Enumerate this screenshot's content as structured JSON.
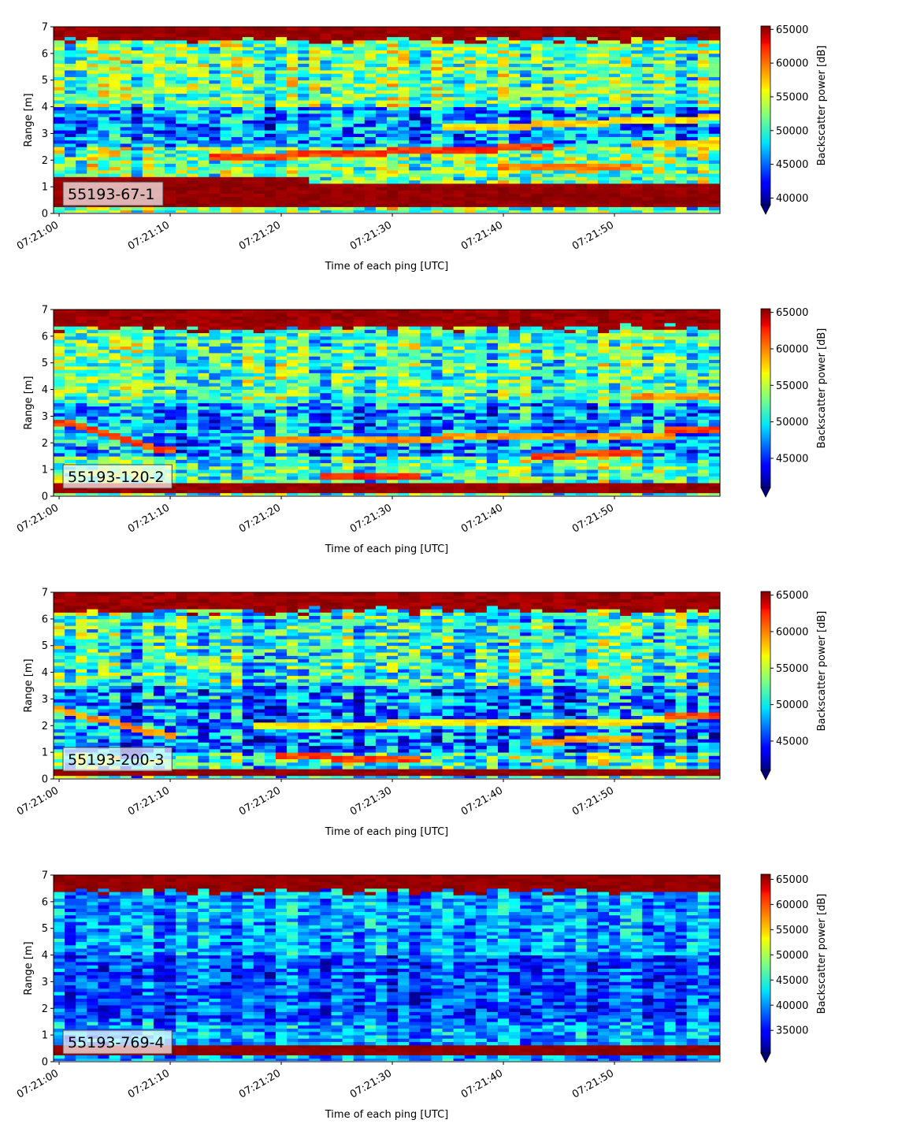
{
  "chart_data": [
    {
      "type": "heatmap",
      "panel_label": "55193-67-1",
      "xlabel": "Time of each ping [UTC]",
      "ylabel": "Range [m]",
      "x_tick_labels": [
        "07:21:00",
        "07:21:10",
        "07:21:20",
        "07:21:30",
        "07:21:40",
        "07:21:50"
      ],
      "x_tick_seconds": [
        0,
        10,
        20,
        30,
        40,
        50
      ],
      "xlim_seconds": [
        -0.5,
        59.5
      ],
      "ylim": [
        0,
        7
      ],
      "y_ticks": [
        0,
        1,
        2,
        3,
        4,
        5,
        6,
        7
      ],
      "colorbar_label": "Backscatter power [dB]",
      "colorbar_range": [
        39000,
        65500
      ],
      "colorbar_ticks": [
        40000,
        45000,
        50000,
        55000,
        60000,
        65000
      ],
      "colorbar_tick_labels": [
        "40000",
        "45000",
        "50000",
        "55000",
        "60000",
        "65000"
      ],
      "colorbar_extend": "min",
      "colormap": "jet",
      "pings": 60,
      "features": [
        {
          "feature": "surface_band",
          "y_range_m": [
            6.5,
            7.0
          ],
          "value": 65500
        },
        {
          "feature": "near_field_band",
          "t_range_s": [
            0,
            23
          ],
          "y_range_m": [
            0.2,
            1.4
          ],
          "value": 65500
        },
        {
          "feature": "near_field_band",
          "t_range_s": [
            23,
            60
          ],
          "y_range_m": [
            0.2,
            1.1
          ],
          "value": 65500
        },
        {
          "feature": "layer",
          "t_range_s": [
            14,
            44
          ],
          "y_start_m": 2.1,
          "y_end_m": 2.5,
          "value": 62000
        },
        {
          "feature": "layer",
          "t_range_s": [
            40,
            52
          ],
          "y_start_m": 1.7,
          "y_end_m": 1.8,
          "value": 60000
        },
        {
          "feature": "layer",
          "t_range_s": [
            35,
            60
          ],
          "y_start_m": 3.2,
          "y_end_m": 3.6,
          "value": 58000
        },
        {
          "feature": "layer",
          "t_range_s": [
            52,
            60
          ],
          "y_start_m": 2.6,
          "y_end_m": 2.7,
          "value": 58000
        }
      ],
      "background": {
        "mean": 51500,
        "spread": 6500,
        "low_zone_m": [
          2.5,
          4.0
        ],
        "low_zone_mean": 46000
      }
    },
    {
      "type": "heatmap",
      "panel_label": "55193-120-2",
      "xlabel": "Time of each ping [UTC]",
      "ylabel": "Range [m]",
      "x_tick_labels": [
        "07:21:00",
        "07:21:10",
        "07:21:20",
        "07:21:30",
        "07:21:40",
        "07:21:50"
      ],
      "x_tick_seconds": [
        0,
        10,
        20,
        30,
        40,
        50
      ],
      "xlim_seconds": [
        -0.5,
        59.5
      ],
      "ylim": [
        0,
        7
      ],
      "y_ticks": [
        0,
        1,
        2,
        3,
        4,
        5,
        6,
        7
      ],
      "colorbar_label": "Backscatter power [dB]",
      "colorbar_range": [
        41000,
        65500
      ],
      "colorbar_ticks": [
        45000,
        50000,
        55000,
        60000,
        65000
      ],
      "colorbar_tick_labels": [
        "45000",
        "50000",
        "55000",
        "60000",
        "65000"
      ],
      "colorbar_extend": "min",
      "colormap": "jet",
      "pings": 60,
      "features": [
        {
          "feature": "surface_band",
          "y_range_m": [
            6.3,
            7.0
          ],
          "value": 65500
        },
        {
          "feature": "near_field_band",
          "t_range_s": [
            0,
            60
          ],
          "y_range_m": [
            0.1,
            0.5
          ],
          "value": 65500
        },
        {
          "feature": "layer",
          "t_range_s": [
            0,
            10
          ],
          "y_start_m": 2.8,
          "y_end_m": 1.7,
          "value": 62000
        },
        {
          "feature": "layer",
          "t_range_s": [
            18,
            55
          ],
          "y_start_m": 2.1,
          "y_end_m": 2.3,
          "value": 60000
        },
        {
          "feature": "layer",
          "t_range_s": [
            24,
            32
          ],
          "y_start_m": 0.8,
          "y_end_m": 0.75,
          "value": 63000
        },
        {
          "feature": "layer",
          "t_range_s": [
            43,
            52
          ],
          "y_start_m": 1.5,
          "y_end_m": 1.65,
          "value": 62000
        },
        {
          "feature": "layer",
          "t_range_s": [
            52,
            60
          ],
          "y_start_m": 3.8,
          "y_end_m": 3.8,
          "value": 60000
        },
        {
          "feature": "layer",
          "t_range_s": [
            55,
            60
          ],
          "y_start_m": 2.45,
          "y_end_m": 2.45,
          "value": 62000
        }
      ],
      "background": {
        "mean": 52000,
        "spread": 6000,
        "low_zone_m": [
          1.5,
          3.5
        ],
        "low_zone_mean": 48000
      }
    },
    {
      "type": "heatmap",
      "panel_label": "55193-200-3",
      "xlabel": "Time of each ping [UTC]",
      "ylabel": "Range [m]",
      "x_tick_labels": [
        "07:21:00",
        "07:21:10",
        "07:21:20",
        "07:21:30",
        "07:21:40",
        "07:21:50"
      ],
      "x_tick_seconds": [
        0,
        10,
        20,
        30,
        40,
        50
      ],
      "xlim_seconds": [
        -0.5,
        59.5
      ],
      "ylim": [
        0,
        7
      ],
      "y_ticks": [
        0,
        1,
        2,
        3,
        4,
        5,
        6,
        7
      ],
      "colorbar_label": "Backscatter power [dB]",
      "colorbar_range": [
        41000,
        65500
      ],
      "colorbar_ticks": [
        45000,
        50000,
        55000,
        60000,
        65000
      ],
      "colorbar_tick_labels": [
        "45000",
        "50000",
        "55000",
        "60000",
        "65000"
      ],
      "colorbar_extend": "min",
      "colormap": "jet",
      "pings": 60,
      "features": [
        {
          "feature": "surface_band",
          "y_range_m": [
            6.3,
            7.0
          ],
          "value": 65500
        },
        {
          "feature": "near_field_band",
          "t_range_s": [
            0,
            60
          ],
          "y_range_m": [
            0.1,
            0.4
          ],
          "value": 65500
        },
        {
          "feature": "layer",
          "t_range_s": [
            0,
            10
          ],
          "y_start_m": 2.6,
          "y_end_m": 1.6,
          "value": 60000
        },
        {
          "feature": "layer",
          "t_range_s": [
            18,
            55
          ],
          "y_start_m": 2.0,
          "y_end_m": 2.2,
          "value": 58000
        },
        {
          "feature": "layer",
          "t_range_s": [
            20,
            32
          ],
          "y_start_m": 0.85,
          "y_end_m": 0.75,
          "value": 62000
        },
        {
          "feature": "layer",
          "t_range_s": [
            43,
            52
          ],
          "y_start_m": 1.4,
          "y_end_m": 1.55,
          "value": 60000
        },
        {
          "feature": "layer",
          "t_range_s": [
            55,
            60
          ],
          "y_start_m": 2.4,
          "y_end_m": 2.4,
          "value": 62000
        }
      ],
      "background": {
        "mean": 51000,
        "spread": 6500,
        "low_zone_m": [
          1.0,
          3.5
        ],
        "low_zone_mean": 47000
      }
    },
    {
      "type": "heatmap",
      "panel_label": "55193-769-4",
      "xlabel": "Time of each ping [UTC]",
      "ylabel": "Range [m]",
      "x_tick_labels": [
        "07:21:00",
        "07:21:10",
        "07:21:20",
        "07:21:30",
        "07:21:40",
        "07:21:50"
      ],
      "x_tick_seconds": [
        0,
        10,
        20,
        30,
        40,
        50
      ],
      "xlim_seconds": [
        -0.5,
        59.5
      ],
      "ylim": [
        0,
        7
      ],
      "y_ticks": [
        0,
        1,
        2,
        3,
        4,
        5,
        6,
        7
      ],
      "colorbar_label": "Backscatter power [dB]",
      "colorbar_range": [
        30500,
        66000
      ],
      "colorbar_ticks": [
        35000,
        40000,
        45000,
        50000,
        55000,
        60000,
        65000
      ],
      "colorbar_tick_labels": [
        "35000",
        "40000",
        "45000",
        "50000",
        "55000",
        "60000",
        "65000"
      ],
      "colorbar_extend": "min",
      "colormap": "jet",
      "pings": 60,
      "features": [
        {
          "feature": "surface_band",
          "y_range_m": [
            6.4,
            7.0
          ],
          "value": 66000
        },
        {
          "feature": "near_field_band",
          "t_range_s": [
            0,
            60
          ],
          "y_range_m": [
            0.2,
            0.6
          ],
          "value": 66000
        }
      ],
      "background": {
        "mean": 40500,
        "spread": 6000,
        "low_zone_m": [
          1.5,
          4.0
        ],
        "low_zone_mean": 37500
      }
    }
  ]
}
